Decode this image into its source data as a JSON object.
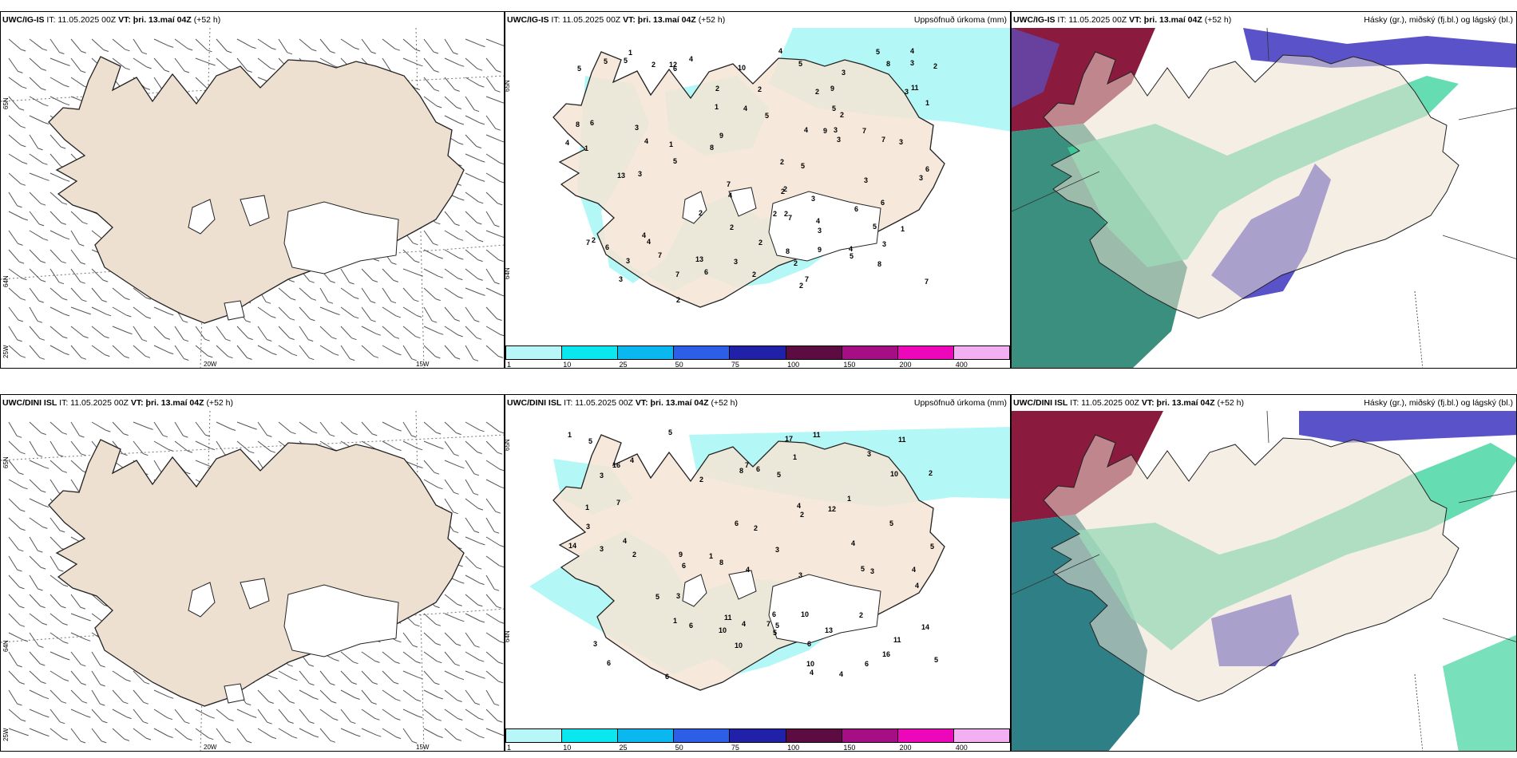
{
  "colors": {
    "land": "#ede0d0",
    "precip": "#b3f8f6",
    "cloud_high": "#3fd39d",
    "cloud_mid": "#5a52c8",
    "cloud_low": "#8a1a3e",
    "colorbar": [
      "#b8f7f7",
      "#0ae7ef",
      "#08b8ef",
      "#2c5fe6",
      "#2020a8",
      "#5c0c40",
      "#a60e84",
      "#ec08ba",
      "#f2b0f2"
    ]
  },
  "rows": [
    {
      "wind": {
        "model": "UWC/IG-IS",
        "it_label": "IT: 11.05.2025 00Z",
        "vt_label": "VT: þri. 13.maí 04Z",
        "lead": "(+52 h)",
        "lat_labels": [
          "65N",
          "64N",
          "25W"
        ],
        "lon_labels": [
          "20W",
          "15W"
        ]
      },
      "precip": {
        "model": "UWC/IG-IS",
        "it_label": "IT: 11.05.2025 00Z",
        "vt_label": "VT: þri. 13.maí 04Z",
        "lead": "(+52 h)",
        "right_title": "Uppsöfnuð úrkoma (mm)",
        "lat_labels": [
          "65N",
          "64N"
        ],
        "colorbar_ticks": [
          "1",
          "10",
          "25",
          "50",
          "75",
          "100",
          "150",
          "200",
          "400"
        ],
        "values": [
          "7",
          "6",
          "4",
          "3",
          "7",
          "2",
          "3",
          "5",
          "4",
          "7",
          "6",
          "8",
          "7",
          "2",
          "3",
          "5",
          "1",
          "8",
          "6",
          "7",
          "4",
          "7",
          "7",
          "5",
          "5",
          "2",
          "3",
          "4",
          "2",
          "2",
          "3",
          "4",
          "9",
          "13",
          "4",
          "3",
          "4",
          "6",
          "6",
          "4",
          "10",
          "2",
          "2",
          "3",
          "5",
          "6",
          "2",
          "2",
          "2",
          "3",
          "2",
          "5",
          "1",
          "5",
          "5",
          "7",
          "8",
          "9",
          "2",
          "7",
          "4",
          "2",
          "3",
          "13",
          "12",
          "3",
          "5",
          "8",
          "9",
          "8",
          "3",
          "4",
          "3",
          "2",
          "6",
          "5",
          "3",
          "4",
          "9",
          "2",
          "4",
          "5",
          "2",
          "2",
          "1",
          "11",
          "3",
          "3",
          "1",
          "2",
          "1",
          "3",
          "2",
          "1"
        ]
      },
      "cloud": {
        "model": "UWC/IG-IS",
        "it_label": "IT: 11.05.2025 00Z",
        "vt_label": "VT: þri. 13.maí 04Z",
        "lead": "(+52 h)",
        "right_title": "Hásky (gr.), miðský (fj.bl.) og lágský (bl.)"
      }
    },
    {
      "wind": {
        "model": "UWC/DINI ISL",
        "it_label": "IT: 11.05.2025 00Z",
        "vt_label": "VT: þri. 13.maí 04Z",
        "lead": "(+52 h)",
        "lat_labels": [
          "65N",
          "64N",
          "25W"
        ],
        "lon_labels": [
          "20W",
          "15W"
        ]
      },
      "precip": {
        "model": "UWC/DINI ISL",
        "it_label": "IT: 11.05.2025 00Z",
        "vt_label": "VT: þri. 13.maí 04Z",
        "lead": "(+52 h)",
        "right_title": "Uppsöfnuð úrkoma (mm)",
        "lat_labels": [
          "65N",
          "64N"
        ],
        "colorbar_ticks": [
          "1",
          "10",
          "25",
          "50",
          "75",
          "100",
          "150",
          "200",
          "400"
        ],
        "values": [
          "11",
          "14",
          "6",
          "17",
          "13",
          "12",
          "4",
          "5",
          "4",
          "6",
          "4",
          "9",
          "11",
          "7",
          "11",
          "6",
          "8",
          "10",
          "6",
          "5",
          "2",
          "4",
          "3",
          "5",
          "10",
          "5",
          "7",
          "4",
          "6",
          "5",
          "5",
          "5",
          "4",
          "3",
          "2",
          "1",
          "6",
          "6",
          "1",
          "1",
          "5",
          "3",
          "1",
          "8",
          "10",
          "11",
          "7",
          "4",
          "16",
          "3",
          "4",
          "6",
          "3",
          "3",
          "5",
          "4",
          "3",
          "2",
          "2",
          "5",
          "4",
          "2",
          "3",
          "6",
          "10",
          "3",
          "2",
          "16",
          "14",
          "10",
          "1",
          "1"
        ]
      },
      "cloud": {
        "model": "UWC/DINI ISL",
        "it_label": "IT: 11.05.2025 00Z",
        "vt_label": "VT: þri. 13.maí 04Z",
        "lead": "(+52 h)",
        "right_title": "Hásky (gr.), miðský (fj.bl.) og lágský (bl.)"
      }
    }
  ]
}
